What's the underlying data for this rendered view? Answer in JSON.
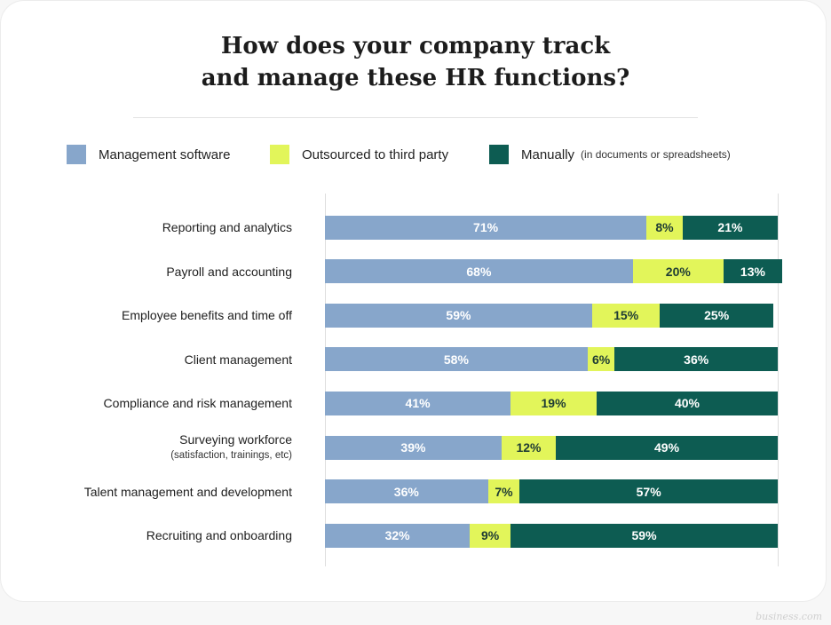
{
  "chart_data": {
    "type": "bar",
    "orientation": "horizontal-stacked-100",
    "title_lines": [
      "How does your company track",
      "and manage these HR functions?"
    ],
    "categories": [
      {
        "label": "Reporting and analytics",
        "sub": ""
      },
      {
        "label": "Payroll and accounting",
        "sub": ""
      },
      {
        "label": "Employee benefits and time off",
        "sub": ""
      },
      {
        "label": "Client management",
        "sub": ""
      },
      {
        "label": "Compliance and risk management",
        "sub": ""
      },
      {
        "label": "Surveying workforce",
        "sub": "(satisfaction, trainings, etc)"
      },
      {
        "label": "Talent management and development",
        "sub": ""
      },
      {
        "label": "Recruiting and onboarding",
        "sub": ""
      }
    ],
    "series": [
      {
        "name": "Management software",
        "note": "",
        "color": "#87a6cb",
        "text_color": "#ffffff",
        "values": [
          71,
          68,
          59,
          58,
          41,
          39,
          36,
          32
        ]
      },
      {
        "name": "Outsourced to third party",
        "note": "",
        "color": "#e2f55a",
        "text_color": "#1e3b34",
        "values": [
          8,
          20,
          15,
          6,
          19,
          12,
          7,
          9
        ]
      },
      {
        "name": "Manually",
        "note": "(in documents or spreadsheets)",
        "color": "#0d5c52",
        "text_color": "#ffffff",
        "values": [
          21,
          13,
          25,
          36,
          40,
          49,
          57,
          59
        ]
      }
    ],
    "value_suffix": "%",
    "xlim": [
      0,
      100
    ],
    "legend": "top",
    "grid": false
  },
  "watermark": "business.com"
}
